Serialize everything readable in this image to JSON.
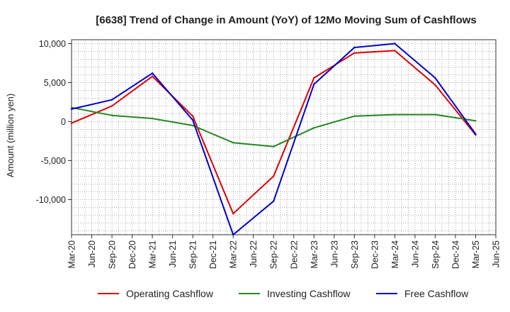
{
  "chart_data": {
    "type": "line",
    "title": "[6638]  Trend of Change in Amount (YoY) of 12Mo Moving Sum of Cashflows",
    "xlabel": "",
    "ylabel": "Amount (million yen)",
    "ylim": [
      -14500,
      10500
    ],
    "grid": true,
    "legend_position": "bottom",
    "categories": [
      "Mar-20",
      "Jun-20",
      "Sep-20",
      "Dec-20",
      "Mar-21",
      "Jun-21",
      "Sep-21",
      "Dec-21",
      "Mar-22",
      "Jun-22",
      "Sep-22",
      "Dec-22",
      "Mar-23",
      "Jun-23",
      "Sep-23",
      "Dec-23",
      "Mar-24",
      "Jun-24",
      "Sep-24",
      "Dec-24",
      "Mar-25",
      "Jun-25"
    ],
    "yticks": [
      10000,
      5000,
      0,
      -5000,
      -10000
    ],
    "ytick_labels": [
      "10,000",
      "5,000",
      "0",
      "-5,000",
      "-10,000"
    ],
    "series": [
      {
        "name": "Operating Cashflow",
        "color": "#dd0000",
        "x": [
          "Mar-20",
          "Sep-20",
          "Mar-21",
          "Sep-21",
          "Mar-22",
          "Sep-22",
          "Mar-23",
          "Sep-23",
          "Mar-24",
          "Sep-24",
          "Mar-25"
        ],
        "values": [
          -200,
          2000,
          5800,
          700,
          -11800,
          -7000,
          5600,
          8800,
          9100,
          4700,
          -1700
        ]
      },
      {
        "name": "Investing Cashflow",
        "color": "#228822",
        "x": [
          "Mar-20",
          "Sep-20",
          "Mar-21",
          "Sep-21",
          "Mar-22",
          "Sep-22",
          "Mar-23",
          "Sep-23",
          "Mar-24",
          "Sep-24",
          "Mar-25"
        ],
        "values": [
          1800,
          800,
          400,
          -500,
          -2700,
          -3200,
          -800,
          700,
          900,
          900,
          100
        ]
      },
      {
        "name": "Free Cashflow",
        "color": "#0000cc",
        "x": [
          "Mar-20",
          "Sep-20",
          "Mar-21",
          "Sep-21",
          "Mar-22",
          "Sep-22",
          "Mar-23",
          "Sep-23",
          "Mar-24",
          "Sep-24",
          "Mar-25"
        ],
        "values": [
          1600,
          2800,
          6200,
          200,
          -14500,
          -10200,
          4800,
          9500,
          10000,
          5600,
          -1600
        ]
      }
    ]
  }
}
